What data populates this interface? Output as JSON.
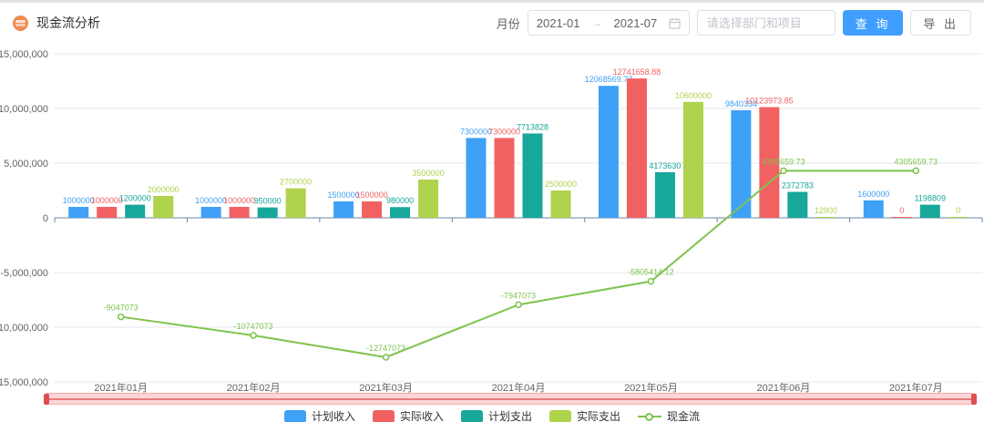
{
  "header": {
    "title": "现金流分析",
    "month_label": "月份",
    "date_start": "2021-01",
    "date_end": "2021-07",
    "range_arrow": "→",
    "dept_placeholder": "请选择部门和项目",
    "query_label": "查 询",
    "export_label": "导 出"
  },
  "ui_colors": {
    "primary_button": "#409EFF",
    "datazoom_track": "#F69E9E",
    "datazoom_handle": "#DE4E4E",
    "logo_orange": "#F08A52"
  },
  "chart_data": {
    "type": "bar+line combo",
    "legend_position": "bottom",
    "grid": "horizontal gridlines on",
    "ylim": [
      -15000000,
      15000000
    ],
    "categories": [
      "2021年01月",
      "2021年02月",
      "2021年03月",
      "2021年04月",
      "2021年05月",
      "2021年06月",
      "2021年07月"
    ],
    "yticks": [
      {
        "value": 15000000,
        "label": "15,000,000"
      },
      {
        "value": 10000000,
        "label": "10,000,000"
      },
      {
        "value": 5000000,
        "label": "5,000,000"
      },
      {
        "value": 0,
        "label": "0"
      },
      {
        "value": -5000000,
        "label": "-5,000,000"
      },
      {
        "value": -10000000,
        "label": "-10,000,000"
      },
      {
        "value": -15000000,
        "label": "-15,000,000"
      }
    ],
    "series": [
      {
        "name": "计划收入",
        "type": "bar",
        "color": "#3FA1F6",
        "values": [
          1000000,
          1000000,
          1500000,
          7300000,
          12068569.77,
          9840334,
          1600000
        ],
        "labels": [
          "1000000",
          "1000000",
          "1500000",
          "7300000",
          "12068569.77",
          "9840334",
          "1600000"
        ]
      },
      {
        "name": "实际收入",
        "type": "bar",
        "color": "#F26161",
        "values": [
          1000000,
          1000000,
          1500000,
          7300000,
          12741658.88,
          10123973.85,
          0
        ],
        "labels": [
          "1000000",
          "1000000",
          "1500000",
          "7300000",
          "12741658.88",
          "10123973.85",
          "0"
        ]
      },
      {
        "name": "计划支出",
        "type": "bar",
        "color": "#17A79B",
        "values": [
          1200000,
          950000,
          980000,
          7713828,
          4173630,
          2372783,
          1198809
        ],
        "labels": [
          "1200000",
          "950000",
          "980000",
          "7713828",
          "4173630",
          "2372783",
          "1198809"
        ]
      },
      {
        "name": "实际支出",
        "type": "bar",
        "color": "#AFD34C",
        "values": [
          2000000,
          2700000,
          3500000,
          2500000,
          10600000,
          12900,
          0
        ],
        "labels": [
          "2000000",
          "2700000",
          "3500000",
          "2500000",
          "10600000",
          "12900",
          "0"
        ]
      },
      {
        "name": "现金流",
        "type": "line",
        "color": "#7EC34F",
        "values": [
          -9047073,
          -10747073,
          -12747073,
          -7947073,
          -5805414.12,
          4305659.73,
          4305659.73
        ],
        "labels": [
          "-9047073",
          "-10747073",
          "-12747073",
          "-7947073",
          "-5805414.12",
          "4305659.73",
          "4305659.73"
        ]
      }
    ]
  }
}
